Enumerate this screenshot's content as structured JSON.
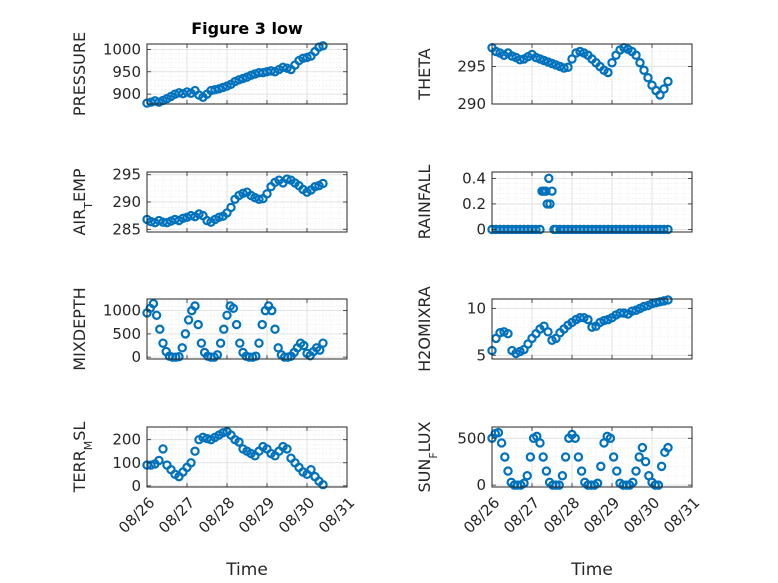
{
  "figure": {
    "title": "Figure 3 low",
    "xlabel": "Time"
  },
  "colors": {
    "marker": "#0072BD",
    "axes": "#262626"
  },
  "x_tick_labels": [
    "08/26",
    "08/27",
    "08/28",
    "08/29",
    "08/30",
    "08/31"
  ],
  "chart_data": [
    {
      "type": "scatter",
      "title": "Figure 3 low",
      "ylabel": "PRESSURE",
      "ylabel_sub": "",
      "xlim": [
        0,
        5
      ],
      "ylim": [
        878,
        1012
      ],
      "yticks": [
        900,
        950,
        1000
      ],
      "grid": true,
      "xticklabels_visible": false,
      "x": [
        0.0,
        0.1,
        0.2,
        0.3,
        0.4,
        0.5,
        0.6,
        0.7,
        0.8,
        0.9,
        1.0,
        1.1,
        1.2,
        1.3,
        1.4,
        1.5,
        1.6,
        1.7,
        1.8,
        1.9,
        2.0,
        2.1,
        2.2,
        2.3,
        2.4,
        2.5,
        2.6,
        2.7,
        2.8,
        2.9,
        3.0,
        3.1,
        3.2,
        3.3,
        3.4,
        3.5,
        3.6,
        3.7,
        3.8,
        3.9,
        4.0,
        4.1,
        4.2,
        4.3,
        4.4
      ],
      "y": [
        880,
        882,
        885,
        882,
        886,
        890,
        895,
        900,
        903,
        901,
        905,
        902,
        908,
        898,
        893,
        900,
        908,
        910,
        912,
        915,
        918,
        922,
        928,
        932,
        935,
        938,
        942,
        945,
        948,
        948,
        950,
        952,
        950,
        955,
        960,
        958,
        955,
        965,
        975,
        980,
        982,
        985,
        995,
        1005,
        1008
      ]
    },
    {
      "type": "scatter",
      "ylabel": "THETA",
      "ylabel_sub": "",
      "xlim": [
        0,
        5
      ],
      "ylim": [
        290,
        298
      ],
      "yticks": [
        290,
        295
      ],
      "grid": true,
      "xticklabels_visible": false,
      "x": [
        0.0,
        0.1,
        0.2,
        0.3,
        0.4,
        0.5,
        0.6,
        0.7,
        0.8,
        0.9,
        1.0,
        1.1,
        1.2,
        1.3,
        1.4,
        1.5,
        1.6,
        1.7,
        1.8,
        1.9,
        2.0,
        2.1,
        2.2,
        2.3,
        2.4,
        2.5,
        2.6,
        2.7,
        2.8,
        2.9,
        3.0,
        3.1,
        3.2,
        3.3,
        3.4,
        3.5,
        3.6,
        3.7,
        3.8,
        3.9,
        4.0,
        4.1,
        4.2,
        4.3,
        4.4
      ],
      "y": [
        297.5,
        297.0,
        296.8,
        296.5,
        296.8,
        296.4,
        296.2,
        295.9,
        296.0,
        296.3,
        296.6,
        296.2,
        296.0,
        295.8,
        295.6,
        295.4,
        295.2,
        295.0,
        294.8,
        294.9,
        296.0,
        296.8,
        297.0,
        296.8,
        296.5,
        296.0,
        295.5,
        295.0,
        294.5,
        294.2,
        295.5,
        296.5,
        297.2,
        297.5,
        297.3,
        297.0,
        296.5,
        295.5,
        294.5,
        293.5,
        292.5,
        291.8,
        291.2,
        292.0,
        293.0
      ]
    },
    {
      "type": "scatter",
      "ylabel": "AIR",
      "ylabel_sub": "T",
      "ylabel_suffix": "EMP",
      "xlim": [
        0,
        5
      ],
      "ylim": [
        284.5,
        295.5
      ],
      "yticks": [
        285,
        290,
        295
      ],
      "grid": true,
      "xticklabels_visible": false,
      "x": [
        0.0,
        0.1,
        0.2,
        0.3,
        0.4,
        0.5,
        0.6,
        0.7,
        0.8,
        0.9,
        1.0,
        1.1,
        1.2,
        1.3,
        1.4,
        1.5,
        1.6,
        1.7,
        1.8,
        1.9,
        2.0,
        2.1,
        2.2,
        2.3,
        2.4,
        2.5,
        2.6,
        2.7,
        2.8,
        2.9,
        3.0,
        3.1,
        3.2,
        3.3,
        3.4,
        3.5,
        3.6,
        3.7,
        3.8,
        3.9,
        4.0,
        4.1,
        4.2,
        4.3,
        4.4
      ],
      "y": [
        286.8,
        286.4,
        286.2,
        286.6,
        286.3,
        286.2,
        286.5,
        286.8,
        286.6,
        287.0,
        287.2,
        287.5,
        287.3,
        287.8,
        287.5,
        286.6,
        286.3,
        286.8,
        287.2,
        287.4,
        288.0,
        289.0,
        290.5,
        291.2,
        291.6,
        291.8,
        291.2,
        290.8,
        290.5,
        290.6,
        291.5,
        292.8,
        293.6,
        294.0,
        293.5,
        294.2,
        294.0,
        293.5,
        293.0,
        292.3,
        291.8,
        292.2,
        292.8,
        293.0,
        293.4
      ]
    },
    {
      "type": "scatter",
      "ylabel": "RAINFALL",
      "ylabel_sub": "",
      "xlim": [
        0,
        5
      ],
      "ylim": [
        -0.02,
        0.45
      ],
      "yticks": [
        0,
        0.2,
        0.4
      ],
      "grid": true,
      "xticklabels_visible": false,
      "x": [
        0.0,
        0.1,
        0.2,
        0.3,
        0.4,
        0.5,
        0.6,
        0.7,
        0.8,
        0.9,
        1.0,
        1.1,
        1.2,
        1.25,
        1.3,
        1.35,
        1.38,
        1.42,
        1.45,
        1.5,
        1.55,
        1.6,
        1.7,
        1.8,
        1.9,
        2.0,
        2.1,
        2.2,
        2.3,
        2.4,
        2.5,
        2.6,
        2.7,
        2.8,
        2.9,
        3.0,
        3.1,
        3.2,
        3.3,
        3.4,
        3.5,
        3.6,
        3.7,
        3.8,
        3.9,
        4.0,
        4.1,
        4.2,
        4.3,
        4.4
      ],
      "y": [
        0,
        0,
        0,
        0,
        0,
        0,
        0,
        0,
        0,
        0,
        0,
        0,
        0,
        0.3,
        0.3,
        0.3,
        0.2,
        0.4,
        0.2,
        0.3,
        0,
        0,
        0,
        0,
        0,
        0,
        0,
        0,
        0,
        0,
        0,
        0,
        0,
        0,
        0,
        0,
        0,
        0,
        0,
        0,
        0,
        0,
        0,
        0,
        0,
        0,
        0,
        0,
        0,
        0
      ]
    },
    {
      "type": "scatter",
      "ylabel": "MIXDEPTH",
      "ylabel_sub": "",
      "xlim": [
        0,
        5
      ],
      "ylim": [
        -40,
        1250
      ],
      "yticks": [
        0,
        500,
        1000
      ],
      "grid": true,
      "xticklabels_visible": false,
      "x": [
        0.0,
        0.08,
        0.16,
        0.24,
        0.32,
        0.4,
        0.48,
        0.56,
        0.64,
        0.72,
        0.8,
        0.88,
        0.96,
        1.04,
        1.12,
        1.2,
        1.28,
        1.36,
        1.44,
        1.52,
        1.6,
        1.68,
        1.76,
        1.84,
        1.92,
        2.0,
        2.08,
        2.16,
        2.24,
        2.32,
        2.4,
        2.48,
        2.56,
        2.64,
        2.72,
        2.8,
        2.88,
        2.96,
        3.04,
        3.12,
        3.2,
        3.28,
        3.36,
        3.44,
        3.52,
        3.6,
        3.68,
        3.76,
        3.84,
        3.92,
        4.0,
        4.08,
        4.16,
        4.24,
        4.32,
        4.4
      ],
      "y": [
        950,
        1050,
        1150,
        900,
        600,
        300,
        120,
        20,
        0,
        0,
        10,
        200,
        500,
        800,
        1000,
        1100,
        700,
        300,
        100,
        20,
        0,
        0,
        50,
        300,
        600,
        900,
        1100,
        1050,
        700,
        300,
        100,
        20,
        0,
        0,
        20,
        300,
        700,
        1000,
        1100,
        1000,
        600,
        200,
        50,
        0,
        0,
        20,
        100,
        200,
        300,
        250,
        80,
        30,
        120,
        200,
        150,
        300
      ]
    },
    {
      "type": "scatter",
      "ylabel": "H2OMIXRA",
      "ylabel_sub": "",
      "xlim": [
        0,
        5
      ],
      "ylim": [
        4.6,
        11.0
      ],
      "yticks": [
        5,
        10
      ],
      "grid": true,
      "xticklabels_visible": false,
      "x": [
        0.0,
        0.1,
        0.2,
        0.3,
        0.4,
        0.5,
        0.6,
        0.7,
        0.8,
        0.9,
        1.0,
        1.1,
        1.2,
        1.3,
        1.4,
        1.5,
        1.6,
        1.7,
        1.8,
        1.9,
        2.0,
        2.1,
        2.2,
        2.3,
        2.4,
        2.5,
        2.6,
        2.7,
        2.8,
        2.9,
        3.0,
        3.1,
        3.2,
        3.3,
        3.4,
        3.5,
        3.6,
        3.7,
        3.8,
        3.9,
        4.0,
        4.1,
        4.2,
        4.3,
        4.4
      ],
      "y": [
        5.5,
        6.8,
        7.4,
        7.5,
        7.3,
        5.5,
        5.2,
        5.4,
        5.6,
        6.2,
        6.8,
        7.3,
        7.8,
        8.1,
        7.5,
        6.6,
        6.8,
        7.4,
        7.8,
        8.2,
        8.5,
        8.8,
        9.0,
        9.0,
        8.8,
        8.0,
        8.1,
        8.5,
        8.7,
        8.8,
        9.0,
        9.3,
        9.5,
        9.5,
        9.4,
        9.7,
        9.8,
        10.0,
        10.2,
        10.3,
        10.5,
        10.6,
        10.7,
        10.8,
        10.9
      ]
    },
    {
      "type": "scatter",
      "ylabel": "TERR",
      "ylabel_sub": "M",
      "ylabel_suffix": "SL",
      "xlim": [
        0,
        5
      ],
      "ylim": [
        -5,
        255
      ],
      "yticks": [
        0,
        100,
        200
      ],
      "grid": true,
      "xticklabels_visible": true,
      "x": [
        0.0,
        0.1,
        0.2,
        0.3,
        0.4,
        0.5,
        0.6,
        0.7,
        0.8,
        0.9,
        1.0,
        1.1,
        1.2,
        1.3,
        1.4,
        1.5,
        1.6,
        1.7,
        1.8,
        1.9,
        2.0,
        2.1,
        2.2,
        2.3,
        2.4,
        2.5,
        2.6,
        2.7,
        2.8,
        2.9,
        3.0,
        3.1,
        3.2,
        3.3,
        3.4,
        3.5,
        3.6,
        3.7,
        3.8,
        3.9,
        4.0,
        4.1,
        4.2,
        4.3,
        4.4
      ],
      "y": [
        90,
        90,
        95,
        110,
        160,
        90,
        70,
        50,
        40,
        60,
        80,
        100,
        150,
        200,
        210,
        205,
        200,
        210,
        220,
        230,
        235,
        220,
        200,
        190,
        160,
        150,
        140,
        130,
        150,
        170,
        160,
        140,
        130,
        150,
        170,
        160,
        120,
        100,
        80,
        60,
        50,
        70,
        40,
        20,
        5
      ]
    },
    {
      "type": "scatter",
      "ylabel": "SUN",
      "ylabel_sub": "F",
      "ylabel_suffix": "LUX",
      "xlim": [
        0,
        5
      ],
      "ylim": [
        -20,
        620
      ],
      "yticks": [
        0,
        500
      ],
      "grid": true,
      "xticklabels_visible": true,
      "x": [
        0.0,
        0.08,
        0.16,
        0.24,
        0.32,
        0.4,
        0.48,
        0.56,
        0.64,
        0.72,
        0.8,
        0.88,
        0.96,
        1.04,
        1.12,
        1.2,
        1.28,
        1.36,
        1.44,
        1.52,
        1.6,
        1.68,
        1.76,
        1.84,
        1.92,
        2.0,
        2.08,
        2.16,
        2.24,
        2.32,
        2.4,
        2.48,
        2.56,
        2.64,
        2.72,
        2.8,
        2.88,
        2.96,
        3.04,
        3.12,
        3.2,
        3.28,
        3.36,
        3.44,
        3.52,
        3.6,
        3.68,
        3.76,
        3.84,
        3.92,
        4.0,
        4.08,
        4.16,
        4.24,
        4.32,
        4.4
      ],
      "y": [
        500,
        550,
        560,
        450,
        300,
        150,
        30,
        0,
        0,
        0,
        20,
        100,
        300,
        500,
        520,
        450,
        300,
        150,
        30,
        0,
        0,
        0,
        100,
        300,
        500,
        540,
        500,
        300,
        150,
        30,
        0,
        0,
        0,
        20,
        200,
        450,
        520,
        500,
        300,
        150,
        20,
        0,
        0,
        0,
        30,
        150,
        300,
        400,
        250,
        100,
        30,
        0,
        0,
        200,
        350,
        400
      ]
    }
  ]
}
